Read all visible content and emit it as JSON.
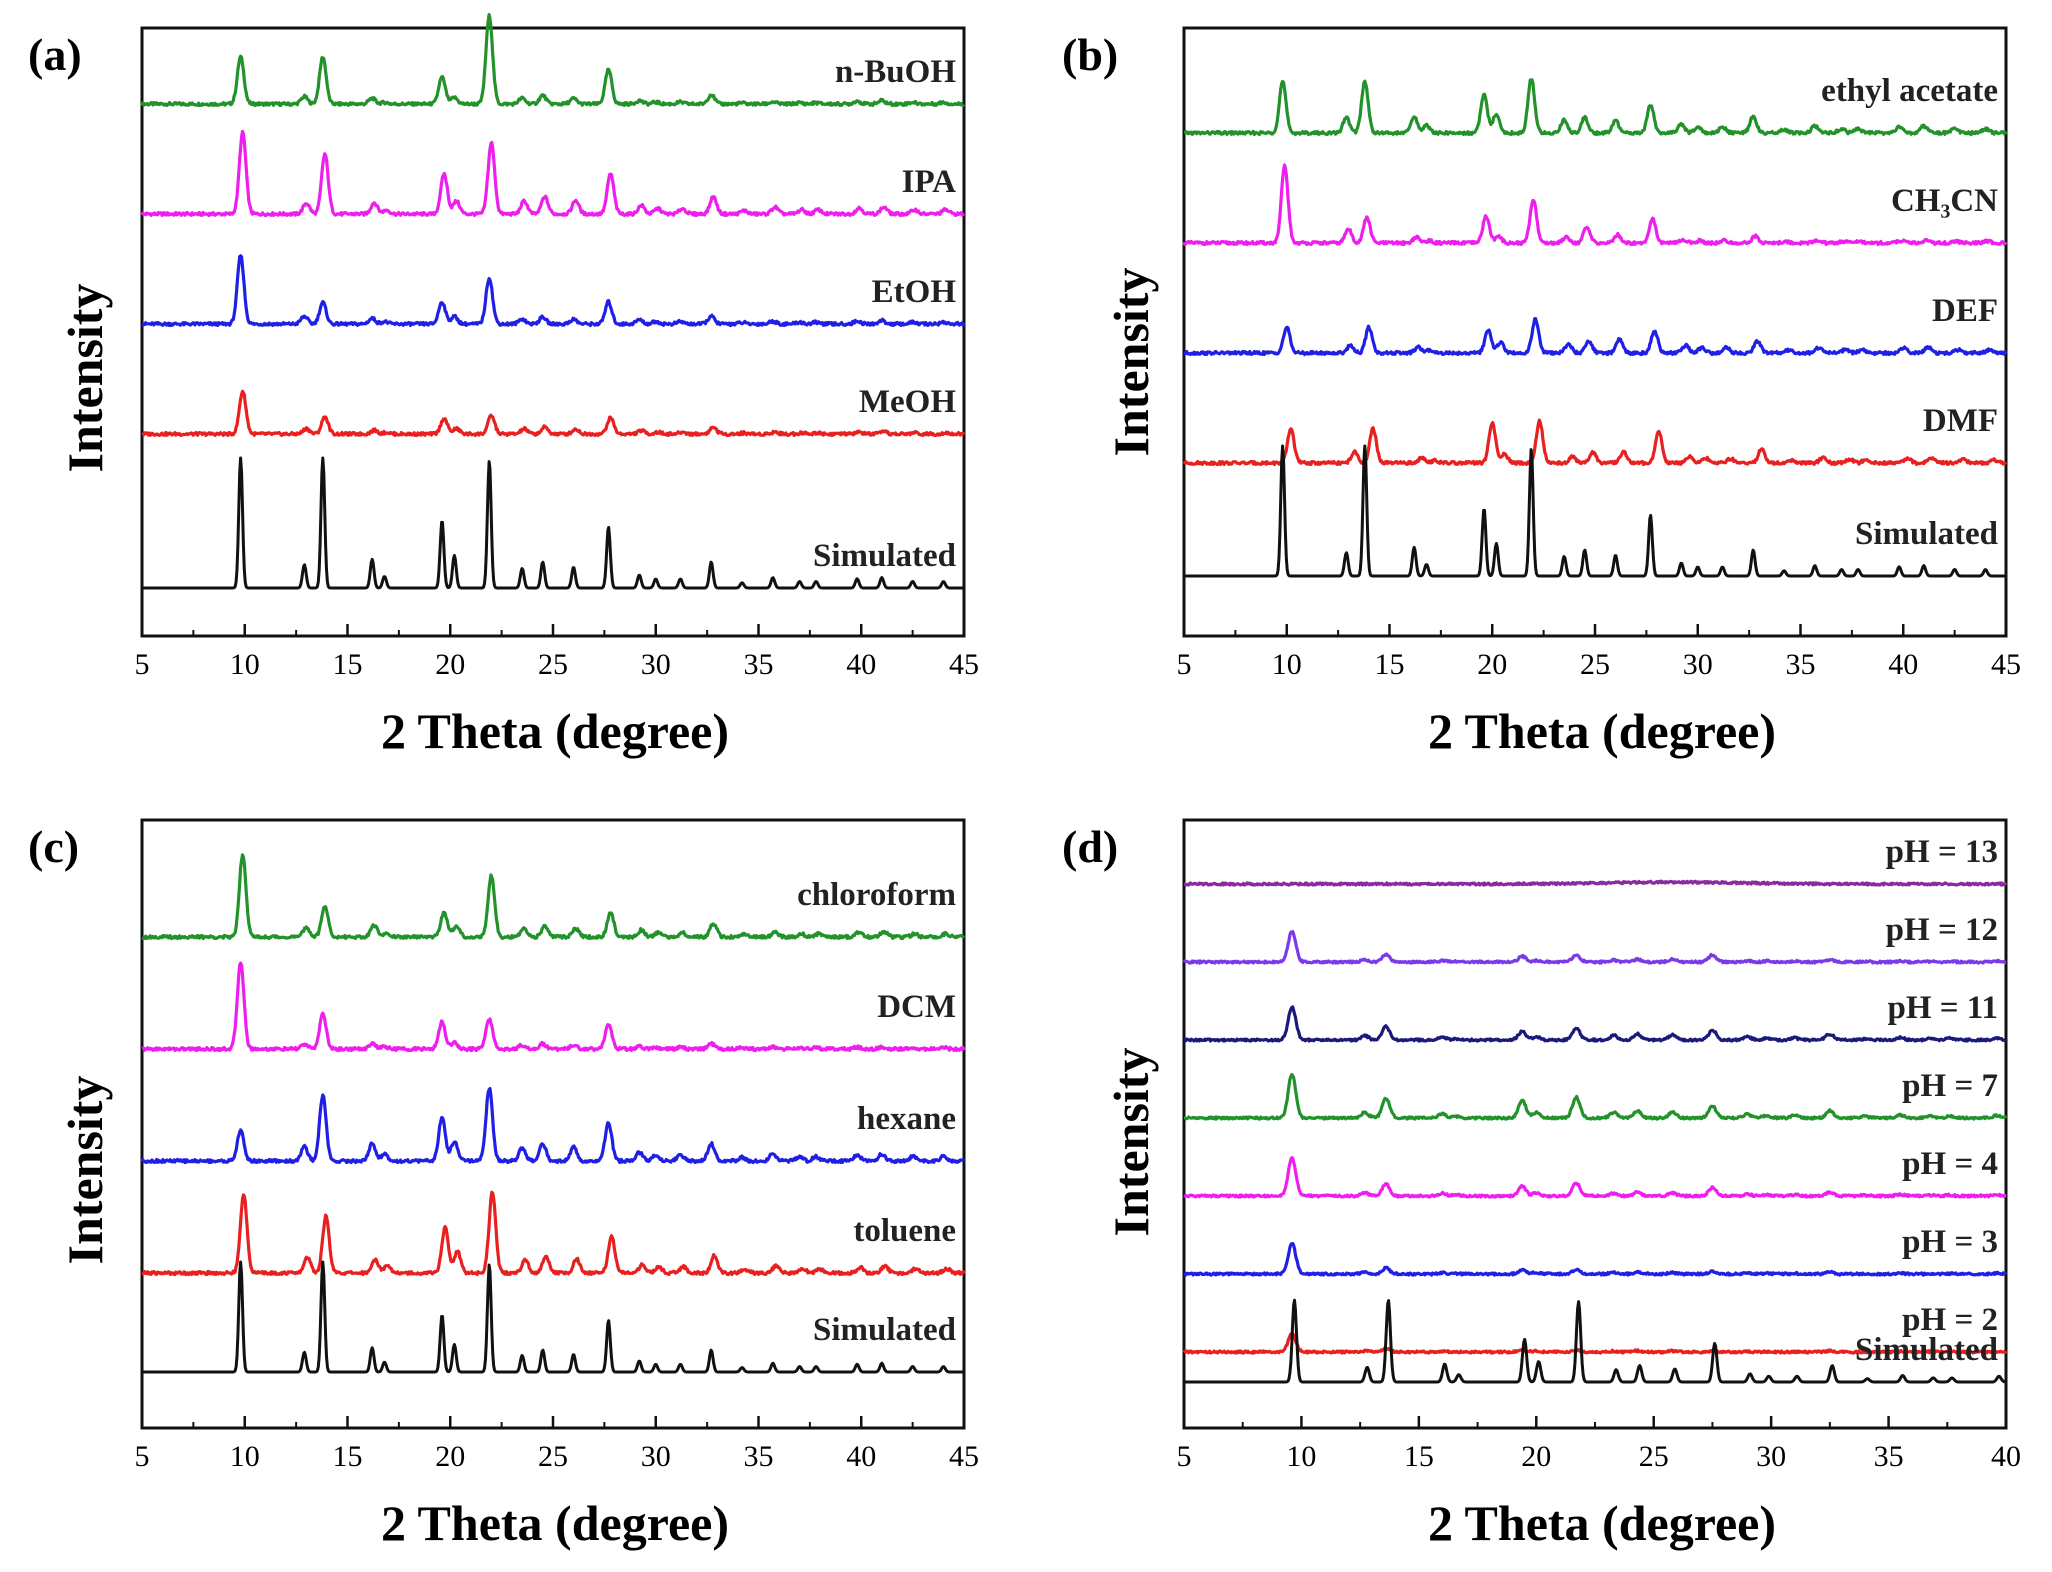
{
  "colors": {
    "black": "#111111",
    "red": "#e8201f",
    "blue": "#1f1fe6",
    "magenta": "#ee1fee",
    "green": "#22922a",
    "navy": "#1a1a7a",
    "purple": "#8a2aa0",
    "violet": "#7a3ae8"
  },
  "peaks": {
    "positions": [
      9.8,
      12.9,
      13.8,
      16.2,
      16.8,
      19.6,
      20.2,
      21.9,
      23.5,
      24.5,
      26.0,
      27.7,
      29.2,
      30.0,
      31.2,
      32.7,
      34.2,
      35.7,
      37.0,
      37.8,
      39.8,
      41.0,
      42.5,
      44.0
    ],
    "simulated_heights": [
      1.0,
      0.18,
      1.0,
      0.22,
      0.09,
      0.52,
      0.25,
      0.98,
      0.15,
      0.2,
      0.16,
      0.47,
      0.1,
      0.07,
      0.07,
      0.2,
      0.04,
      0.08,
      0.05,
      0.05,
      0.07,
      0.08,
      0.05,
      0.05
    ]
  },
  "chart_data": [
    {
      "type": "line",
      "panel_label": "(a)",
      "xlabel": "2 Theta (degree)",
      "ylabel": "Intensity",
      "xlim": [
        5,
        45
      ],
      "xticks": [
        5,
        10,
        15,
        20,
        25,
        30,
        35,
        40,
        45
      ],
      "series": [
        {
          "name": "n-BuOH",
          "color": "green",
          "shift": 0.0,
          "scale": [
            0.55,
            0.48,
            0.55,
            0.3,
            0.2,
            0.6,
            0.3,
            1.05,
            0.45,
            0.5,
            0.4,
            0.85,
            0.4,
            0.3,
            0.3,
            0.55,
            0.3,
            0.3,
            0.3,
            0.3,
            0.5,
            0.5,
            0.4,
            0.4
          ]
        },
        {
          "name": "IPA",
          "color": "magenta",
          "shift": 0.1,
          "scale": [
            0.95,
            0.7,
            0.7,
            0.6,
            0.5,
            0.9,
            0.6,
            0.85,
            1.0,
            1.0,
            1.0,
            1.0,
            1.0,
            0.9,
            0.9,
            1.0,
            1.0,
            1.0,
            1.0,
            1.0,
            1.0,
            1.0,
            1.0,
            1.0
          ]
        },
        {
          "name": "EtOH",
          "color": "blue",
          "shift": 0.0,
          "scale": [
            0.8,
            0.5,
            0.25,
            0.3,
            0.3,
            0.5,
            0.35,
            0.55,
            0.4,
            0.4,
            0.35,
            0.55,
            0.5,
            0.4,
            0.4,
            0.45,
            0.4,
            0.4,
            0.4,
            0.4,
            0.5,
            0.5,
            0.4,
            0.4
          ]
        },
        {
          "name": "MeOH",
          "color": "red",
          "shift": 0.1,
          "scale": [
            0.5,
            0.35,
            0.2,
            0.2,
            0.2,
            0.35,
            0.25,
            0.22,
            0.4,
            0.4,
            0.35,
            0.4,
            0.4,
            0.3,
            0.3,
            0.4,
            0.3,
            0.3,
            0.3,
            0.3,
            0.3,
            0.3,
            0.3,
            0.3
          ]
        },
        {
          "name": "Simulated",
          "color": "black",
          "shift": 0.0,
          "scale": null
        }
      ]
    },
    {
      "type": "line",
      "panel_label": "(b)",
      "xlabel": "2 Theta (degree)",
      "ylabel": "Intensity",
      "xlim": [
        5,
        45
      ],
      "xticks": [
        5,
        10,
        15,
        20,
        25,
        30,
        35,
        40,
        45
      ],
      "series": [
        {
          "name": "ethyl acetate",
          "color": "green",
          "shift": 0.0,
          "scale": [
            0.6,
            1.0,
            0.6,
            0.85,
            1.0,
            0.85,
            0.9,
            0.65,
            1.0,
            0.9,
            0.9,
            0.7,
            1.0,
            1.0,
            1.0,
            1.0,
            1.0,
            1.0,
            1.0,
            1.0,
            1.0,
            1.0,
            1.0,
            1.0
          ]
        },
        {
          "name": "CH₃CN",
          "color": "magenta",
          "shift": 0.1,
          "scale": [
            0.9,
            0.9,
            0.3,
            0.3,
            0.3,
            0.6,
            0.3,
            0.52,
            0.5,
            0.9,
            0.6,
            0.6,
            0.4,
            0.4,
            0.4,
            0.4,
            0.4,
            0.4,
            0.4,
            0.4,
            0.4,
            0.4,
            0.4,
            0.4
          ]
        },
        {
          "name": "DEF",
          "color": "blue",
          "shift": 0.2,
          "scale": [
            0.3,
            0.5,
            0.3,
            0.3,
            0.4,
            0.5,
            0.5,
            0.4,
            0.7,
            0.7,
            1.0,
            0.55,
            0.9,
            0.9,
            0.9,
            0.7,
            0.9,
            0.8,
            0.8,
            0.8,
            0.9,
            0.9,
            0.8,
            0.8
          ]
        },
        {
          "name": "DMF",
          "color": "red",
          "shift": 0.4,
          "scale": [
            0.4,
            0.7,
            0.4,
            0.3,
            0.3,
            0.9,
            0.4,
            0.5,
            0.5,
            0.6,
            0.8,
            0.8,
            0.8,
            0.8,
            0.7,
            0.8,
            0.8,
            0.8,
            0.8,
            0.8,
            0.8,
            0.8,
            0.8,
            0.8
          ]
        },
        {
          "name": "Simulated",
          "color": "black",
          "shift": 0.0,
          "scale": null
        }
      ]
    },
    {
      "type": "line",
      "panel_label": "(c)",
      "xlabel": "2 Theta (degree)",
      "ylabel": "Intensity",
      "xlim": [
        5,
        45
      ],
      "xticks": [
        5,
        10,
        15,
        20,
        25,
        30,
        35,
        40,
        45
      ],
      "series": [
        {
          "name": "chloroform",
          "color": "green",
          "shift": 0.1,
          "scale": [
            0.95,
            0.6,
            0.35,
            0.6,
            0.5,
            0.55,
            0.5,
            0.72,
            0.6,
            0.6,
            0.6,
            0.6,
            0.8,
            0.7,
            0.7,
            0.8,
            0.7,
            0.7,
            0.7,
            0.7,
            0.8,
            0.8,
            0.7,
            0.7
          ]
        },
        {
          "name": "DCM",
          "color": "magenta",
          "shift": 0.0,
          "scale": [
            1.0,
            0.3,
            0.4,
            0.3,
            0.3,
            0.6,
            0.3,
            0.35,
            0.3,
            0.3,
            0.3,
            0.6,
            0.3,
            0.3,
            0.3,
            0.3,
            0.3,
            0.3,
            0.3,
            0.3,
            0.3,
            0.3,
            0.3,
            0.3
          ]
        },
        {
          "name": "hexane",
          "color": "blue",
          "shift": 0.0,
          "scale": [
            0.35,
            0.9,
            0.75,
            0.9,
            0.9,
            0.95,
            0.9,
            0.85,
            1.0,
            1.0,
            1.0,
            0.95,
            1.0,
            1.0,
            1.0,
            1.0,
            1.0,
            1.0,
            1.0,
            1.0,
            1.0,
            1.0,
            1.0,
            1.0
          ]
        },
        {
          "name": "toluene",
          "color": "red",
          "shift": 0.15,
          "scale": [
            0.9,
            1.0,
            0.65,
            0.7,
            1.0,
            1.0,
            1.0,
            0.95,
            1.0,
            1.0,
            1.0,
            0.9,
            1.0,
            1.0,
            1.0,
            1.0,
            1.0,
            1.0,
            1.0,
            1.0,
            1.0,
            1.0,
            1.0,
            1.0
          ]
        },
        {
          "name": "Simulated",
          "color": "black",
          "shift": 0.0,
          "scale": null
        }
      ]
    },
    {
      "type": "line",
      "panel_label": "(d)",
      "xlabel": "2 Theta (degree)",
      "ylabel": "Intensity",
      "xlim": [
        5,
        40
      ],
      "xticks": [
        5,
        10,
        15,
        20,
        25,
        30,
        35,
        40
      ],
      "series": [
        {
          "name": "pH = 13",
          "color": "purple",
          "shift": 0.0,
          "scale": "flat"
        },
        {
          "name": "pH = 12",
          "color": "violet",
          "shift": -0.2,
          "scale": [
            0.5,
            0.2,
            0.12,
            0.1,
            0.1,
            0.18,
            0.1,
            0.12,
            0.2,
            0.2,
            0.3,
            0.25,
            0.2,
            0.2,
            0.2,
            0.2,
            0.2,
            0.2,
            0.2,
            0.2,
            0.2,
            0.2,
            0.2,
            0.2
          ]
        },
        {
          "name": "pH = 11",
          "color": "navy",
          "shift": -0.2,
          "scale": [
            0.55,
            0.4,
            0.22,
            0.25,
            0.2,
            0.28,
            0.2,
            0.2,
            0.5,
            0.5,
            0.5,
            0.35,
            0.5,
            0.5,
            0.5,
            0.5,
            0.5,
            0.5,
            0.5,
            0.5,
            0.5,
            0.5,
            0.5,
            0.5
          ]
        },
        {
          "name": "pH = 7",
          "color": "green",
          "shift": -0.2,
          "scale": [
            0.72,
            0.5,
            0.32,
            0.3,
            0.3,
            0.55,
            0.35,
            0.35,
            0.6,
            0.6,
            0.6,
            0.42,
            0.6,
            0.6,
            0.6,
            0.6,
            0.6,
            0.6,
            0.6,
            0.6,
            0.6,
            0.6,
            0.6,
            0.6
          ]
        },
        {
          "name": "pH = 4",
          "color": "magenta",
          "shift": -0.2,
          "scale": [
            0.62,
            0.3,
            0.2,
            0.2,
            0.2,
            0.3,
            0.2,
            0.22,
            0.3,
            0.3,
            0.3,
            0.3,
            0.3,
            0.3,
            0.3,
            0.3,
            0.3,
            0.3,
            0.3,
            0.3,
            0.3,
            0.3,
            0.3,
            0.3
          ]
        },
        {
          "name": "pH = 3",
          "color": "blue",
          "shift": -0.2,
          "scale": [
            0.5,
            0.15,
            0.1,
            0.1,
            0.1,
            0.12,
            0.1,
            0.08,
            0.15,
            0.15,
            0.15,
            0.08,
            0.15,
            0.15,
            0.15,
            0.15,
            0.15,
            0.15,
            0.15,
            0.15,
            0.15,
            0.15,
            0.15,
            0.15
          ]
        },
        {
          "name": "pH = 2",
          "color": "red",
          "shift": -0.2,
          "scale": [
            0.3,
            0.1,
            0.06,
            0.05,
            0.05,
            0.06,
            0.05,
            0.03,
            0.1,
            0.1,
            0.1,
            0.04,
            0.1,
            0.1,
            0.1,
            0.1,
            0.1,
            0.1,
            0.1,
            0.1,
            0.1,
            0.1,
            0.1,
            0.1
          ]
        },
        {
          "name": "Simulated",
          "color": "black",
          "shift": -0.1,
          "scale": null
        }
      ]
    }
  ]
}
